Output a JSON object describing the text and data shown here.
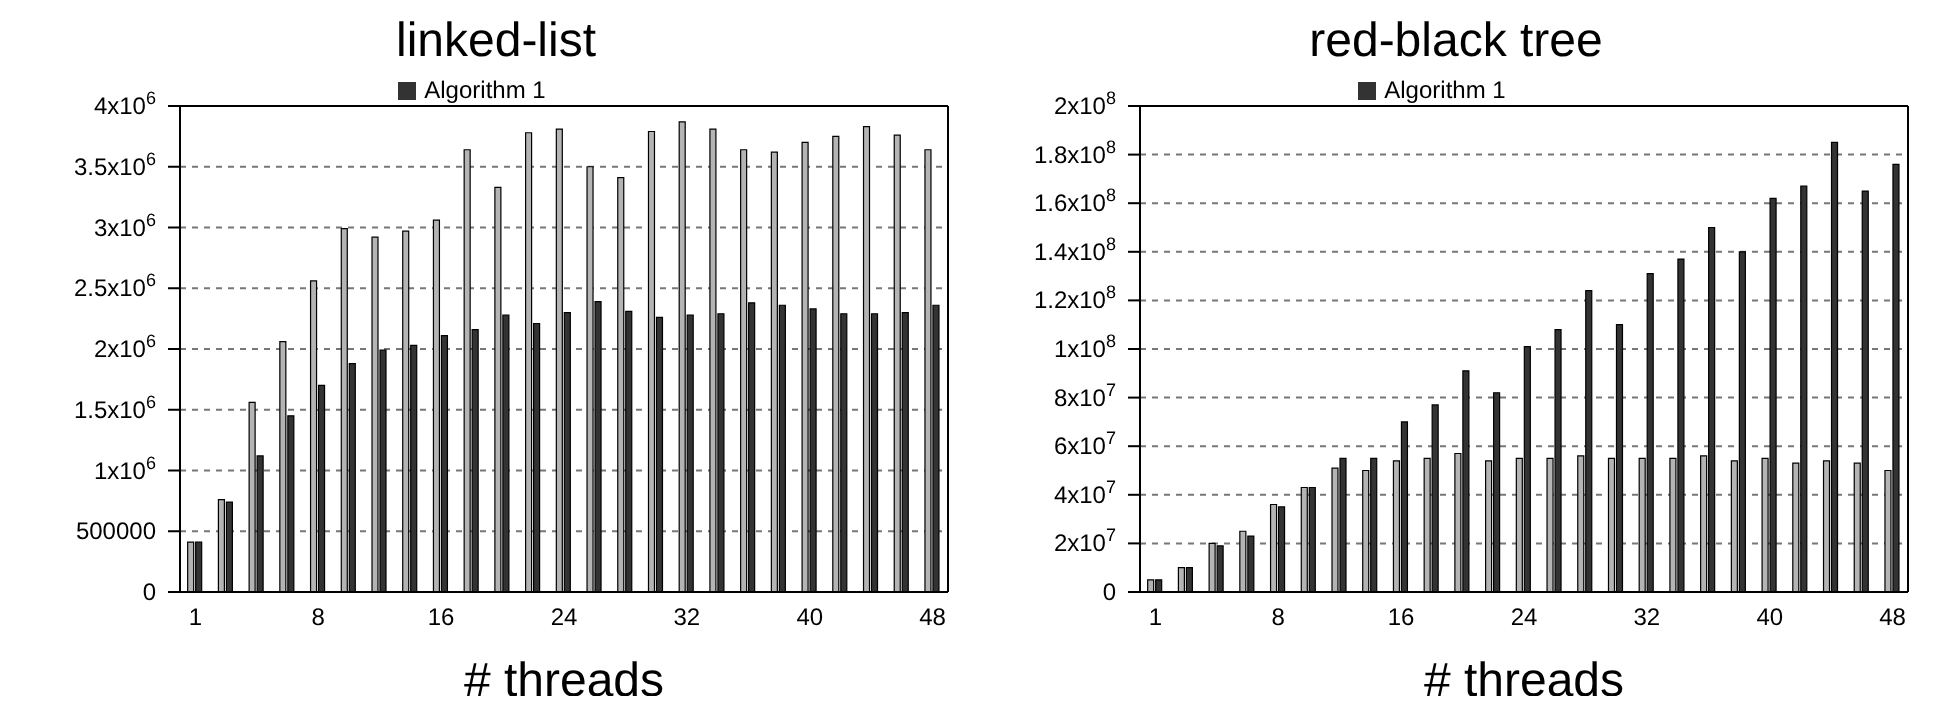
{
  "chart_data": [
    {
      "type": "bar",
      "title": "linked-list",
      "xlabel": "# threads",
      "categories": [
        "1",
        null,
        null,
        null,
        "8",
        null,
        null,
        null,
        "16",
        null,
        null,
        null,
        "24",
        null,
        null,
        null,
        "32",
        null,
        null,
        null,
        "40",
        null,
        null,
        null,
        "48"
      ],
      "series": [
        {
          "color": "#b4b4b4",
          "values": [
            410000,
            760000,
            1560000,
            2060000,
            2560000,
            2990000,
            2920000,
            2970000,
            3060000,
            3640000,
            3330000,
            3780000,
            3810000,
            3500000,
            3410000,
            3790000,
            3870000,
            3810000,
            3640000,
            3620000,
            3700000,
            3750000,
            3830000,
            3760000,
            3640000
          ]
        },
        {
          "name": "Algorithm 1",
          "color": "#333333",
          "values": [
            410000,
            740000,
            1120000,
            1450000,
            1700000,
            1880000,
            1990000,
            2030000,
            2110000,
            2160000,
            2280000,
            2210000,
            2300000,
            2390000,
            2310000,
            2260000,
            2280000,
            2290000,
            2380000,
            2360000,
            2330000,
            2290000,
            2290000,
            2300000,
            2360000
          ]
        }
      ],
      "ylim": [
        0,
        4000000
      ],
      "yticks": [
        {
          "value": 0,
          "label": "0"
        },
        {
          "value": 500000,
          "label": "500000"
        },
        {
          "value": 1000000,
          "label": "1x10$^{6}$"
        },
        {
          "value": 1500000,
          "label": "1.5x10$^{6}$"
        },
        {
          "value": 2000000,
          "label": "2x10$^{6}$"
        },
        {
          "value": 2500000,
          "label": "2.5x10$^{6}$"
        },
        {
          "value": 3000000,
          "label": "3x10$^{6}$"
        },
        {
          "value": 3500000,
          "label": "3.5x10$^{6}$"
        },
        {
          "value": 4000000,
          "label": "4x10$^{6}$"
        }
      ],
      "grid": "y",
      "legend": "top"
    },
    {
      "type": "bar",
      "title": "red-black tree",
      "xlabel": "# threads",
      "categories": [
        "1",
        null,
        null,
        null,
        "8",
        null,
        null,
        null,
        "16",
        null,
        null,
        null,
        "24",
        null,
        null,
        null,
        "32",
        null,
        null,
        null,
        "40",
        null,
        null,
        null,
        "48"
      ],
      "series": [
        {
          "color": "#b4b4b4",
          "values": [
            5000000,
            10000000,
            20000000,
            25000000,
            36000000,
            43000000,
            51000000,
            50000000,
            54000000,
            55000000,
            57000000,
            54000000,
            55000000,
            55000000,
            56000000,
            55000000,
            55000000,
            55000000,
            56000000,
            54000000,
            55000000,
            53000000,
            54000000,
            53000000,
            50000000
          ]
        },
        {
          "name": "Algorithm 1",
          "color": "#333333",
          "values": [
            5000000,
            10000000,
            19000000,
            23000000,
            35000000,
            43000000,
            55000000,
            55000000,
            70000000,
            77000000,
            91000000,
            82000000,
            101000000,
            108000000,
            124000000,
            110000000,
            131000000,
            137000000,
            150000000,
            140000000,
            162000000,
            167000000,
            185000000,
            165000000,
            176000000
          ]
        }
      ],
      "ylim": [
        0,
        200000000
      ],
      "yticks": [
        {
          "value": 0,
          "label": "0"
        },
        {
          "value": 20000000,
          "label": "2x10$^{7}$"
        },
        {
          "value": 40000000,
          "label": "4x10$^{7}$"
        },
        {
          "value": 60000000,
          "label": "6x10$^{7}$"
        },
        {
          "value": 80000000,
          "label": "8x10$^{7}$"
        },
        {
          "value": 100000000,
          "label": "1x10$^{8}$"
        },
        {
          "value": 120000000,
          "label": "1.2x10$^{8}$"
        },
        {
          "value": 140000000,
          "label": "1.4x10$^{8}$"
        },
        {
          "value": 160000000,
          "label": "1.6x10$^{8}$"
        },
        {
          "value": 180000000,
          "label": "1.8x10$^{8}$"
        },
        {
          "value": 200000000,
          "label": "2x10$^{8}$"
        }
      ],
      "grid": "y",
      "legend": "top"
    }
  ]
}
